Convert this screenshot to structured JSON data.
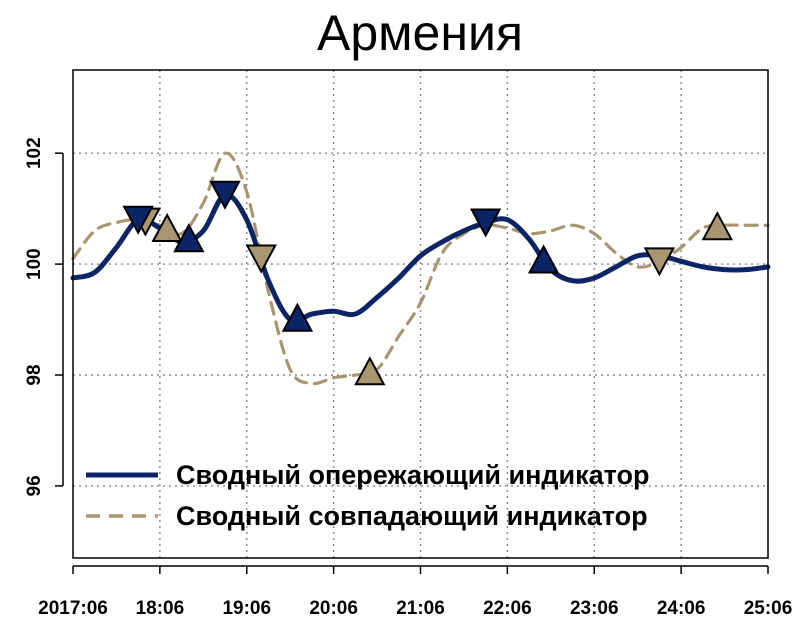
{
  "chart_data": {
    "type": "line",
    "title": "Армения",
    "xlabel": "",
    "ylabel": "",
    "x_ticks": [
      "2017:06",
      "18:06",
      "19:06",
      "20:06",
      "21:06",
      "22:06",
      "23:06",
      "24:06",
      "25:06"
    ],
    "y_ticks": [
      96,
      98,
      100,
      102
    ],
    "xlim": [
      0,
      96
    ],
    "ylim": [
      94.7,
      103.5
    ],
    "grid": true,
    "legend_position": "bottom-left",
    "colors": {
      "leading": "#0b2466",
      "coincident": "#a89670"
    },
    "series": [
      {
        "name": "Сводный опережающий индикатор",
        "style": "solid",
        "x": [
          0,
          3,
          6,
          9,
          12,
          15,
          18,
          21,
          24,
          27,
          30,
          33,
          36,
          39,
          42,
          45,
          48,
          51,
          54,
          57,
          60,
          63,
          66,
          69,
          72,
          75,
          78,
          81,
          84,
          87,
          90,
          93,
          96
        ],
        "values": [
          99.75,
          99.85,
          100.3,
          100.8,
          100.65,
          100.4,
          100.6,
          101.25,
          100.8,
          99.7,
          99.0,
          99.1,
          99.15,
          99.1,
          99.4,
          99.75,
          100.15,
          100.4,
          100.6,
          100.75,
          100.8,
          100.45,
          99.9,
          99.7,
          99.75,
          99.95,
          100.15,
          100.15,
          100.05,
          99.95,
          99.9,
          99.9,
          99.95
        ],
        "peaks_x": [
          9,
          21,
          57
        ],
        "troughs_x": [
          16,
          31,
          65
        ]
      },
      {
        "name": "Сводный совпадающий индикатор",
        "style": "dashed",
        "x": [
          0,
          3,
          6,
          9,
          12,
          15,
          18,
          21,
          24,
          27,
          30,
          33,
          36,
          39,
          42,
          45,
          48,
          51,
          54,
          57,
          60,
          63,
          66,
          69,
          72,
          75,
          78,
          81,
          84,
          87,
          90,
          93,
          96
        ],
        "values": [
          100.1,
          100.6,
          100.75,
          100.8,
          100.7,
          100.55,
          101.1,
          102.0,
          101.3,
          99.5,
          98.1,
          97.85,
          97.95,
          98.0,
          98.1,
          98.7,
          99.3,
          100.2,
          100.55,
          100.7,
          100.65,
          100.55,
          100.6,
          100.7,
          100.55,
          100.2,
          99.95,
          100.05,
          100.3,
          100.65,
          100.7,
          100.7,
          100.7
        ],
        "peaks_x": [
          10,
          26,
          81
        ],
        "troughs_x": [
          13,
          41,
          89
        ]
      }
    ]
  }
}
